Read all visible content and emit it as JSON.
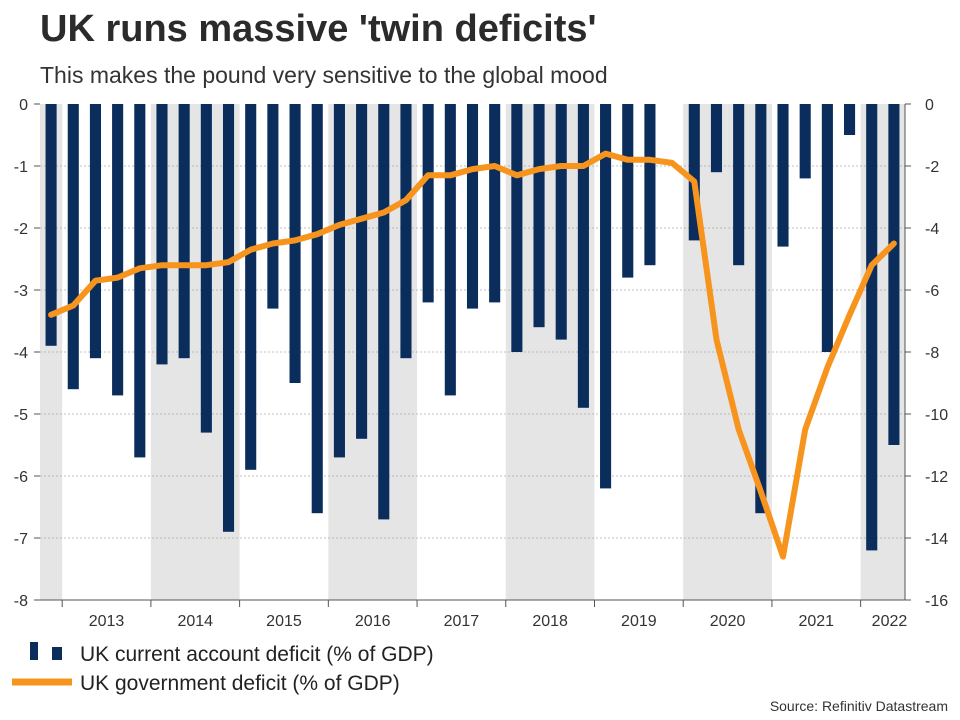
{
  "chart_data": {
    "type": "bar+line",
    "title": "UK runs massive 'twin deficits'",
    "subtitle": "This makes the pound very sensitive to the global mood",
    "source": "Source: Refinitiv Datastream",
    "years": [
      "2013",
      "2014",
      "2015",
      "2016",
      "2017",
      "2018",
      "2019",
      "2020",
      "2021",
      "2022"
    ],
    "shaded_years": [
      "2014",
      "2016",
      "2018",
      "2020",
      "2022"
    ],
    "left_axis": {
      "ylim": [
        -8,
        0
      ],
      "ticks": [
        0,
        -1,
        -2,
        -3,
        -4,
        -5,
        -6,
        -7,
        -8
      ]
    },
    "right_axis": {
      "ylim": [
        -16,
        0
      ],
      "ticks": [
        0,
        -2,
        -4,
        -6,
        -8,
        -10,
        -12,
        -14,
        -16
      ]
    },
    "series": [
      {
        "name": "UK current account deficit (% of GDP)",
        "type": "bar",
        "axis": "left",
        "color": "#0a2d5c",
        "start": "2012-Q4",
        "values": [
          -3.9,
          -4.6,
          -4.1,
          -4.7,
          -5.7,
          -4.2,
          -4.1,
          -5.3,
          -6.9,
          -5.9,
          -3.3,
          -4.5,
          -6.6,
          -5.7,
          -5.4,
          -6.7,
          -4.1,
          -3.2,
          -4.7,
          -3.3,
          -3.2,
          -4.0,
          -3.6,
          -3.8,
          -4.9,
          -6.2,
          -2.8,
          -2.6,
          null,
          -2.2,
          -1.1,
          -2.6,
          -6.6,
          -2.3,
          -1.2,
          -4.0,
          -0.5,
          -7.2,
          -5.5
        ]
      },
      {
        "name": "UK government deficit (% of GDP)",
        "type": "line",
        "axis": "right",
        "color": "#f7941d",
        "start": "2012-Q4",
        "values": [
          -6.8,
          -6.5,
          -5.7,
          -5.6,
          -5.3,
          -5.2,
          -5.2,
          -5.2,
          -5.1,
          -4.7,
          -4.5,
          -4.4,
          -4.2,
          -3.9,
          -3.7,
          -3.5,
          -3.1,
          -2.3,
          -2.3,
          -2.1,
          -2.0,
          -2.3,
          -2.1,
          -2.0,
          -2.0,
          -1.6,
          -1.8,
          -1.8,
          -1.9,
          -2.5,
          -7.6,
          -10.5,
          -12.5,
          -14.6,
          -10.5,
          -8.5,
          -6.8,
          -5.2,
          -4.5
        ]
      }
    ],
    "legend": {
      "position": "bottom-left"
    }
  }
}
